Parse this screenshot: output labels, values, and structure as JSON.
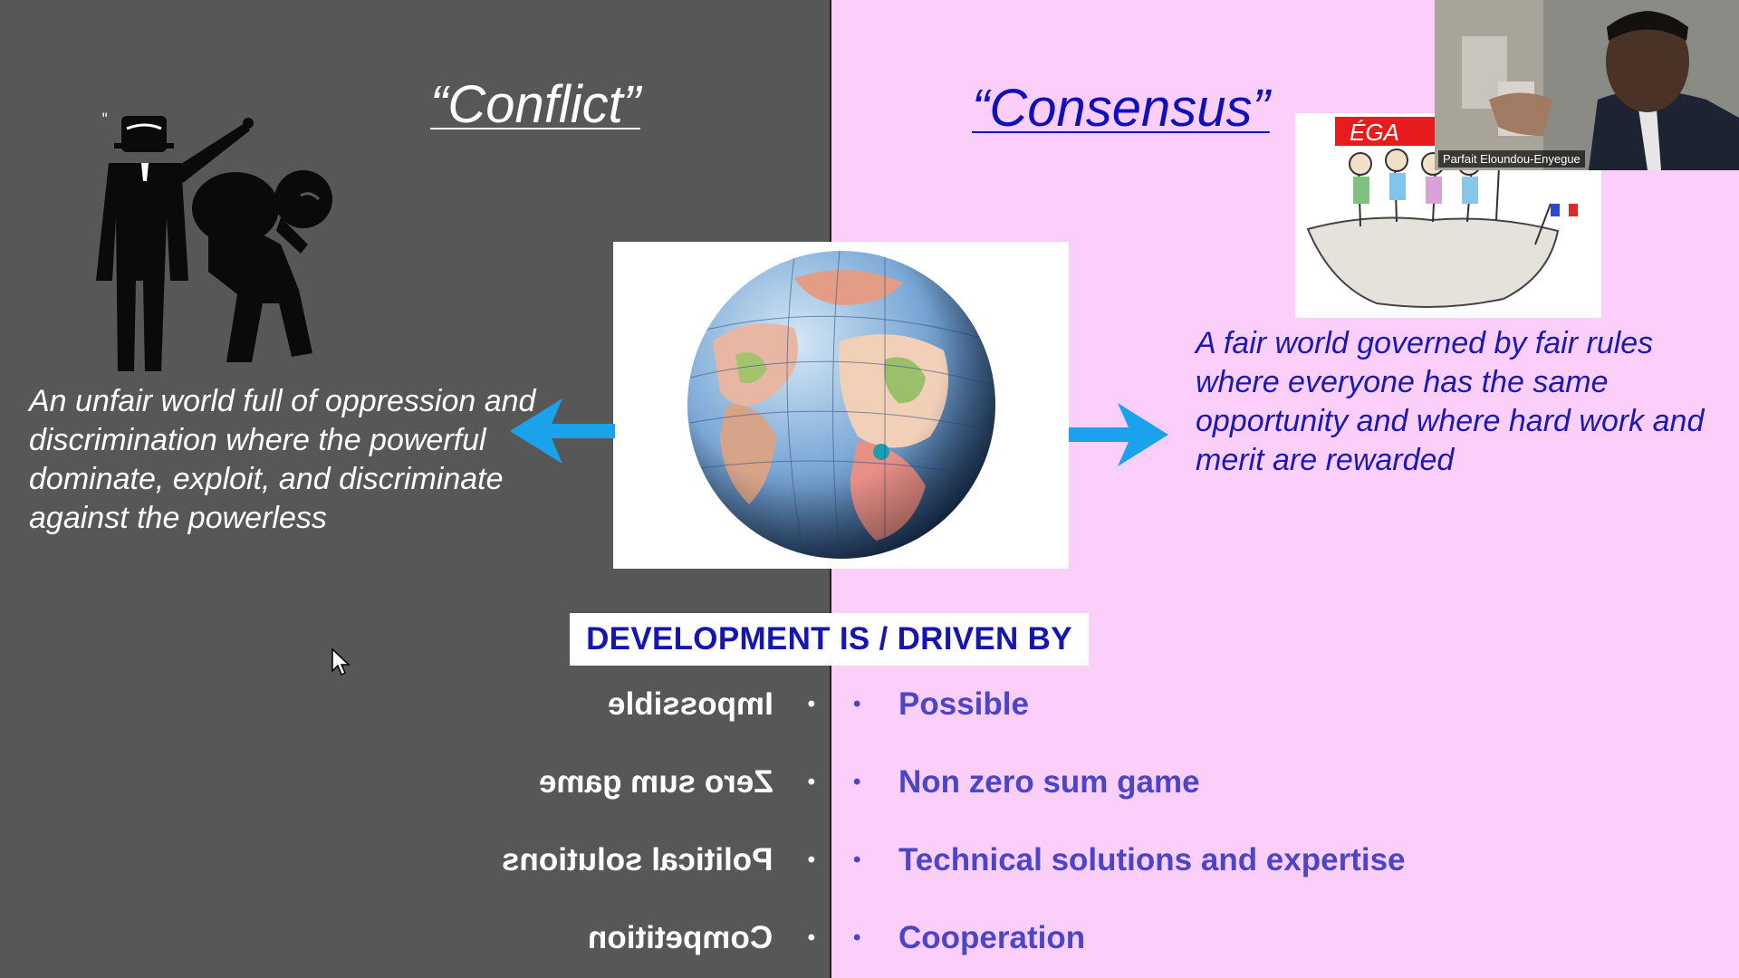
{
  "slide": {
    "conflict_title": "“Conflict”",
    "consensus_title": "“Consensus”",
    "conflict_description": "An unfair world full of oppression and discrimination where the powerful dominate, exploit, and discriminate against the powerless",
    "consensus_description": "A fair world governed by fair rules where everyone has the same opportunity and where hard work and merit are rewarded",
    "development_label": "DEVELOPMENT IS / DRIVEN BY",
    "conflict_items": [
      "Impossible",
      "Zero sum game",
      "Political solutions",
      "Competition"
    ],
    "consensus_items": [
      "Possible",
      "Non zero sum game",
      "Technical solutions and expertise",
      "Cooperation"
    ],
    "bullet": "•",
    "cartoon_sign": "ÉGA"
  },
  "video": {
    "participant_name": "Parfait Eloundou-Enyegue"
  },
  "colors": {
    "left_background": "#575757",
    "right_background": "#fccffb",
    "consensus_title": "#1010b8",
    "consensus_items": "#4a46c6",
    "arrow": "#1aa3ec"
  },
  "icons": [
    "oppression-figure-icon",
    "globe-icon",
    "arrow-left-icon",
    "arrow-right-icon",
    "mouse-cursor-icon"
  ]
}
